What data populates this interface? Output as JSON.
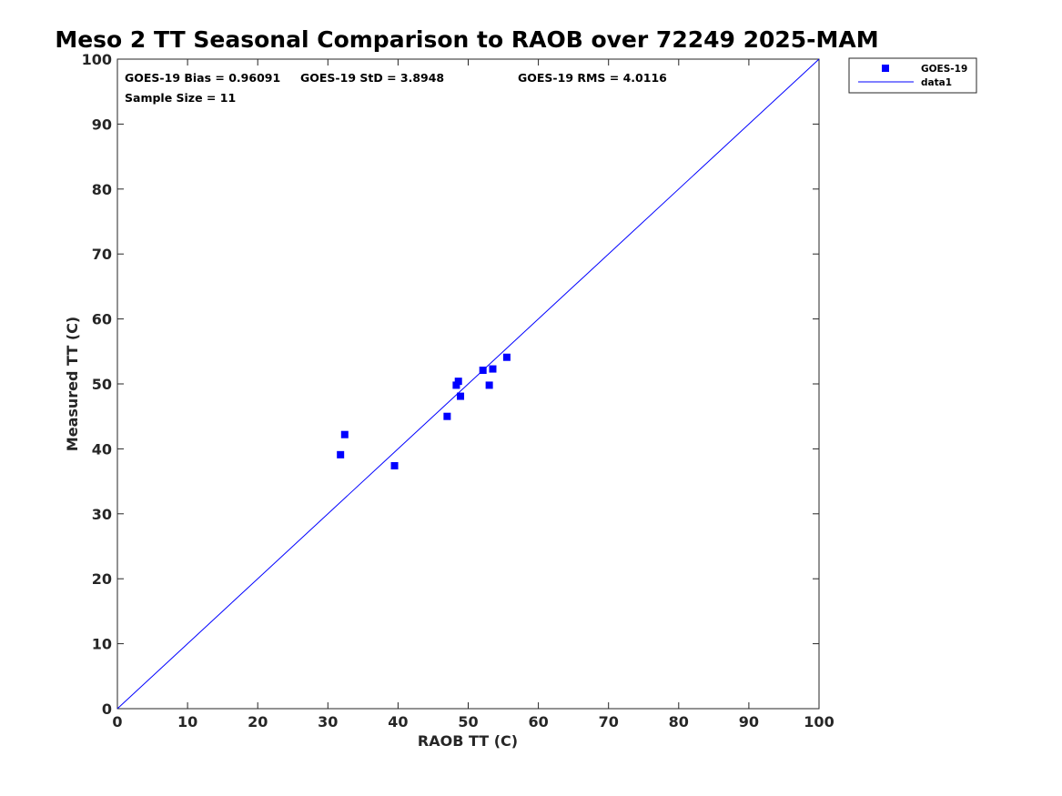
{
  "chart_data": {
    "type": "scatter",
    "title": "Meso 2 TT Seasonal Comparison to RAOB over 72249 2025-MAM",
    "xlabel": "RAOB TT (C)",
    "ylabel": "Measured TT (C)",
    "xlim": [
      0,
      100
    ],
    "ylim": [
      0,
      100
    ],
    "xticks": [
      0,
      10,
      20,
      30,
      40,
      50,
      60,
      70,
      80,
      90,
      100
    ],
    "yticks": [
      0,
      10,
      20,
      30,
      40,
      50,
      60,
      70,
      80,
      90,
      100
    ],
    "grid": false,
    "legend_position": "top-right",
    "annotations": {
      "bias": "GOES-19 Bias = 0.96091",
      "std": "GOES-19 StD = 3.8948",
      "rms": "GOES-19 RMS = 4.0116",
      "sample": "Sample Size = 11"
    },
    "series": [
      {
        "name": "GOES-19",
        "marker": "square",
        "color": "#0000ff",
        "points": [
          {
            "x": 31.8,
            "y": 39.1
          },
          {
            "x": 32.4,
            "y": 42.2
          },
          {
            "x": 39.5,
            "y": 37.4
          },
          {
            "x": 47.0,
            "y": 45.0
          },
          {
            "x": 48.3,
            "y": 49.8
          },
          {
            "x": 48.6,
            "y": 50.4
          },
          {
            "x": 48.9,
            "y": 48.1
          },
          {
            "x": 52.1,
            "y": 52.1
          },
          {
            "x": 53.0,
            "y": 49.8
          },
          {
            "x": 53.5,
            "y": 52.3
          },
          {
            "x": 55.5,
            "y": 54.1
          }
        ]
      },
      {
        "name": "data1",
        "line": "solid",
        "color": "#0000ff",
        "points": [
          {
            "x": 0,
            "y": 0
          },
          {
            "x": 100,
            "y": 100
          }
        ]
      }
    ]
  }
}
